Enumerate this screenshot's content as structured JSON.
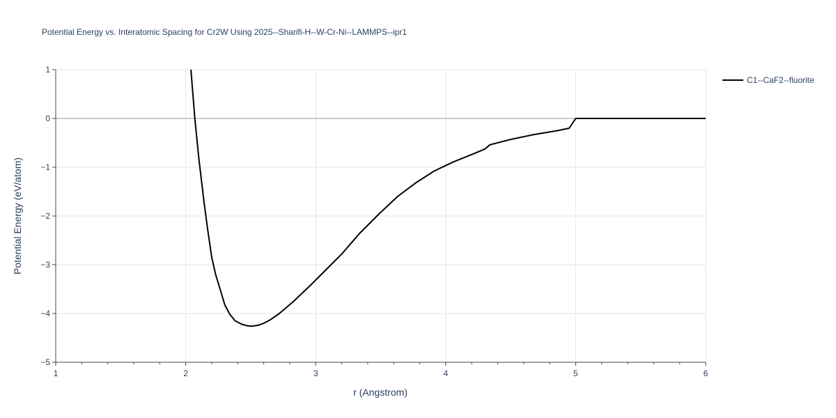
{
  "chart_data": {
    "type": "line",
    "title": "Potential Energy vs. Interatomic Spacing for Cr2W Using 2025--Sharifi-H--W-Cr-Ni--LAMMPS--ipr1",
    "xlabel": "r (Angstrom)",
    "ylabel": "Potential Energy (eV/atom)",
    "xlim": [
      1,
      6
    ],
    "ylim": [
      -5,
      1
    ],
    "x_ticks": [
      "1",
      "2",
      "3",
      "4",
      "5",
      "6"
    ],
    "y_ticks": [
      "1",
      "0",
      "−1",
      "−2",
      "−3",
      "−4",
      "−5"
    ],
    "grid": true,
    "legend_position": "top-right",
    "line_color": "#000000",
    "series": [
      {
        "name": "C1--CaF2--fluorite",
        "x": [
          2.04,
          2.07,
          2.1,
          2.14,
          2.17,
          2.2,
          2.23,
          2.27,
          2.3,
          2.34,
          2.38,
          2.43,
          2.47,
          2.51,
          2.56,
          2.6,
          2.65,
          2.72,
          2.83,
          2.96,
          3.08,
          3.2,
          3.34,
          3.49,
          3.63,
          3.77,
          3.91,
          4.06,
          4.2,
          4.3,
          4.34,
          4.5,
          4.68,
          4.86,
          4.95,
          5.0,
          5.5,
          6.0
        ],
        "y": [
          1.0,
          0.0,
          -0.8,
          -1.7,
          -2.3,
          -2.85,
          -3.2,
          -3.55,
          -3.82,
          -4.02,
          -4.15,
          -4.22,
          -4.25,
          -4.26,
          -4.24,
          -4.2,
          -4.13,
          -4.0,
          -3.75,
          -3.42,
          -3.1,
          -2.78,
          -2.35,
          -1.95,
          -1.6,
          -1.32,
          -1.08,
          -0.89,
          -0.74,
          -0.63,
          -0.54,
          -0.43,
          -0.33,
          -0.25,
          -0.2,
          0.0,
          0.0,
          0.0
        ]
      }
    ]
  }
}
